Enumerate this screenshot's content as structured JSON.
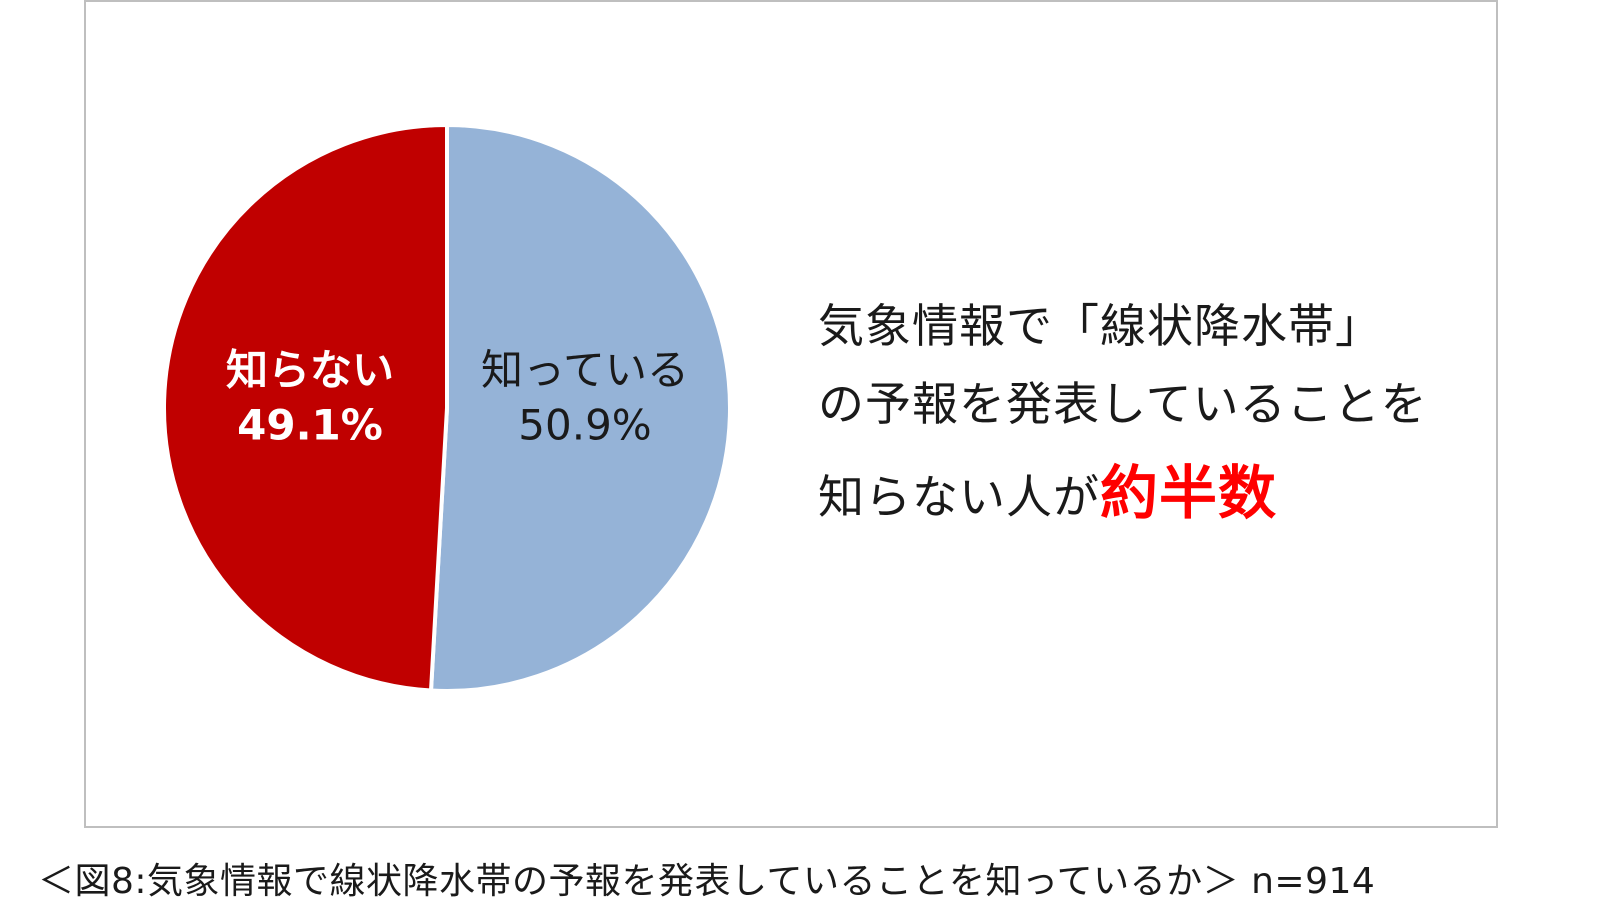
{
  "chart_data": {
    "type": "pie",
    "slices": [
      {
        "label": "知っている",
        "value": 50.9,
        "value_label": "50.9%",
        "color": "#95b3d7",
        "label_color": "#1a1a1a",
        "bold": false
      },
      {
        "label": "知らない",
        "value": 49.1,
        "value_label": "49.1%",
        "color": "#c00000",
        "label_color": "#ffffff",
        "bold": true
      }
    ]
  },
  "callout": {
    "line1": "気象情報で「線状降水帯」",
    "line2": "の予報を発表していることを",
    "line3_prefix": "知らない人が",
    "line3_emphasis": "約半数",
    "emphasis_color": "#ff0000"
  },
  "caption": "＜図8:気象情報で線状降水帯の予報を発表していることを知っているか＞ n=914"
}
